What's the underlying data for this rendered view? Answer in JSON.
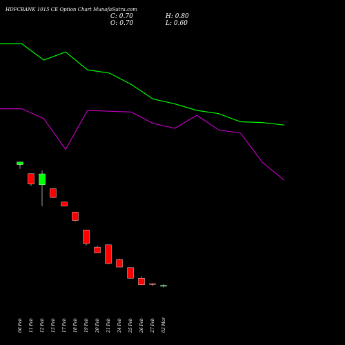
{
  "header": {
    "title": "HDFCBANK 1015 CE Option Chart MunafaSutra.com",
    "close": "C: 0.70",
    "open": "O: 0.70",
    "high": "H: 0.80",
    "low": "L: 0.60"
  },
  "chart_data": {
    "type": "candlestick",
    "categories": [
      "06 Feb",
      "11 Feb",
      "12 Feb",
      "13 Feb",
      "17 Feb",
      "18 Feb",
      "19 Feb",
      "20 Feb",
      "21 Feb",
      "24 Feb",
      "25 Feb",
      "26 Feb",
      "27 Feb",
      "03 Mar"
    ],
    "candles": [
      {
        "open": 25.6,
        "close": 27.2,
        "high": 27.2,
        "low": 23.0
      },
      {
        "open": 20.0,
        "close": 13.6,
        "high": 20.0,
        "low": 12.5
      },
      {
        "open": 13.2,
        "close": 19.9,
        "high": 22.0,
        "low": 0.0
      },
      {
        "open": 10.8,
        "close": 5.4,
        "high": 10.8,
        "low": 5.1
      },
      {
        "open": 2.6,
        "close": 0.0,
        "high": 2.6,
        "low": 0.0
      },
      {
        "open": -3.6,
        "close": -8.8,
        "high": -3.6,
        "low": -9.4
      },
      {
        "open": -14.6,
        "close": -23.0,
        "high": -14.6,
        "low": -24.2
      },
      {
        "open": -25.2,
        "close": -28.8,
        "high": -24.4,
        "low": -28.8
      },
      {
        "open": -23.8,
        "close": -35.3,
        "high": -23.8,
        "low": -35.8
      },
      {
        "open": -32.8,
        "close": -37.5,
        "high": -32.4,
        "low": -37.5
      },
      {
        "open": -37.8,
        "close": -44.4,
        "high": -37.8,
        "low": -44.4
      },
      {
        "open": -44.4,
        "close": -48.4,
        "high": -43.2,
        "low": -48.6
      },
      {
        "open": -47.7,
        "close": -48.1,
        "high": -47.5,
        "low": -49.0
      },
      {
        "open": -48.8,
        "close": -48.8,
        "high": -48.1,
        "low": -50.0
      }
    ],
    "series": [
      {
        "color": "#00ff00",
        "values": [
          100,
          100,
          90,
          95,
          84,
          82,
          75,
          66,
          63,
          59,
          57,
          52,
          51.5,
          50
        ]
      },
      {
        "color": "#c000c0",
        "values": [
          60,
          60,
          54,
          35,
          59,
          58.5,
          58,
          51,
          48,
          56,
          47,
          45,
          27,
          16
        ]
      }
    ],
    "colors": {
      "up": "#00ff00",
      "down": "#ff0000",
      "background": "#000000"
    },
    "ylim": [
      -60,
      110
    ],
    "grid": false,
    "legend": "none"
  }
}
